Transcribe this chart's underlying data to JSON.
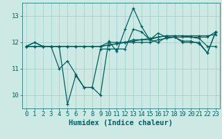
{
  "xlabel": "Humidex (Indice chaleur)",
  "ylabel": "",
  "bg_color": "#cce9e4",
  "line_color": "#006060",
  "grid_color": "#99cccc",
  "xlim": [
    -0.5,
    23.5
  ],
  "ylim": [
    9.5,
    13.5
  ],
  "yticks": [
    10,
    11,
    12,
    13
  ],
  "xticks": [
    0,
    1,
    2,
    3,
    4,
    5,
    6,
    7,
    8,
    9,
    10,
    11,
    12,
    13,
    14,
    15,
    16,
    17,
    18,
    19,
    20,
    21,
    22,
    23
  ],
  "series": [
    {
      "x": [
        0,
        1,
        2,
        3,
        4,
        5,
        6,
        7,
        8,
        9,
        10,
        11,
        12,
        13,
        14,
        15,
        16,
        17,
        18,
        19,
        20,
        21,
        22,
        23
      ],
      "y": [
        11.85,
        12.0,
        11.85,
        11.85,
        11.85,
        9.65,
        10.75,
        10.3,
        10.3,
        10.0,
        12.05,
        11.65,
        12.5,
        13.3,
        12.6,
        12.1,
        12.35,
        12.2,
        12.2,
        12.05,
        12.05,
        11.95,
        11.6,
        12.4
      ]
    },
    {
      "x": [
        0,
        1,
        2,
        3,
        4,
        5,
        6,
        7,
        8,
        9,
        10,
        11,
        12,
        13,
        14,
        15,
        16,
        17,
        18,
        19,
        20,
        21,
        22,
        23
      ],
      "y": [
        11.85,
        11.85,
        11.85,
        11.85,
        11.85,
        11.85,
        11.85,
        11.85,
        11.85,
        11.85,
        11.9,
        11.95,
        12.0,
        12.05,
        12.1,
        12.15,
        12.2,
        12.25,
        12.25,
        12.25,
        12.25,
        12.25,
        12.25,
        12.3
      ]
    },
    {
      "x": [
        0,
        1,
        2,
        3,
        4,
        5,
        6,
        7,
        8,
        9,
        10,
        11,
        12,
        13,
        14,
        15,
        16,
        17,
        18,
        19,
        20,
        21,
        22,
        23
      ],
      "y": [
        11.85,
        11.85,
        11.85,
        11.85,
        11.85,
        11.85,
        11.85,
        11.85,
        11.85,
        11.85,
        12.0,
        12.0,
        12.0,
        12.0,
        12.0,
        12.0,
        12.1,
        12.15,
        12.2,
        12.2,
        12.2,
        12.2,
        12.2,
        12.4
      ]
    },
    {
      "x": [
        0,
        1,
        2,
        3,
        4,
        5,
        6,
        7,
        8,
        9,
        10,
        11,
        12,
        13,
        14,
        15,
        16,
        17,
        18,
        19,
        20,
        21,
        22,
        23
      ],
      "y": [
        11.85,
        12.0,
        11.85,
        11.85,
        11.0,
        11.3,
        10.8,
        10.3,
        10.3,
        11.75,
        11.75,
        11.75,
        11.75,
        12.5,
        12.4,
        12.1,
        12.0,
        12.2,
        12.2,
        12.0,
        12.0,
        12.0,
        11.6,
        12.4
      ]
    },
    {
      "x": [
        0,
        1,
        2,
        3,
        4,
        5,
        6,
        7,
        8,
        9,
        10,
        11,
        12,
        13,
        14,
        15,
        16,
        17,
        18,
        19,
        20,
        21,
        22,
        23
      ],
      "y": [
        11.85,
        11.85,
        11.85,
        11.85,
        11.85,
        11.85,
        11.85,
        11.85,
        11.85,
        11.85,
        11.9,
        11.95,
        12.0,
        12.1,
        12.1,
        12.1,
        12.2,
        12.25,
        12.25,
        12.25,
        12.2,
        12.15,
        11.85,
        11.85
      ]
    }
  ],
  "marker_size": 3.5,
  "line_width": 0.9,
  "font_size_tick": 6.5,
  "font_size_label": 7.5
}
